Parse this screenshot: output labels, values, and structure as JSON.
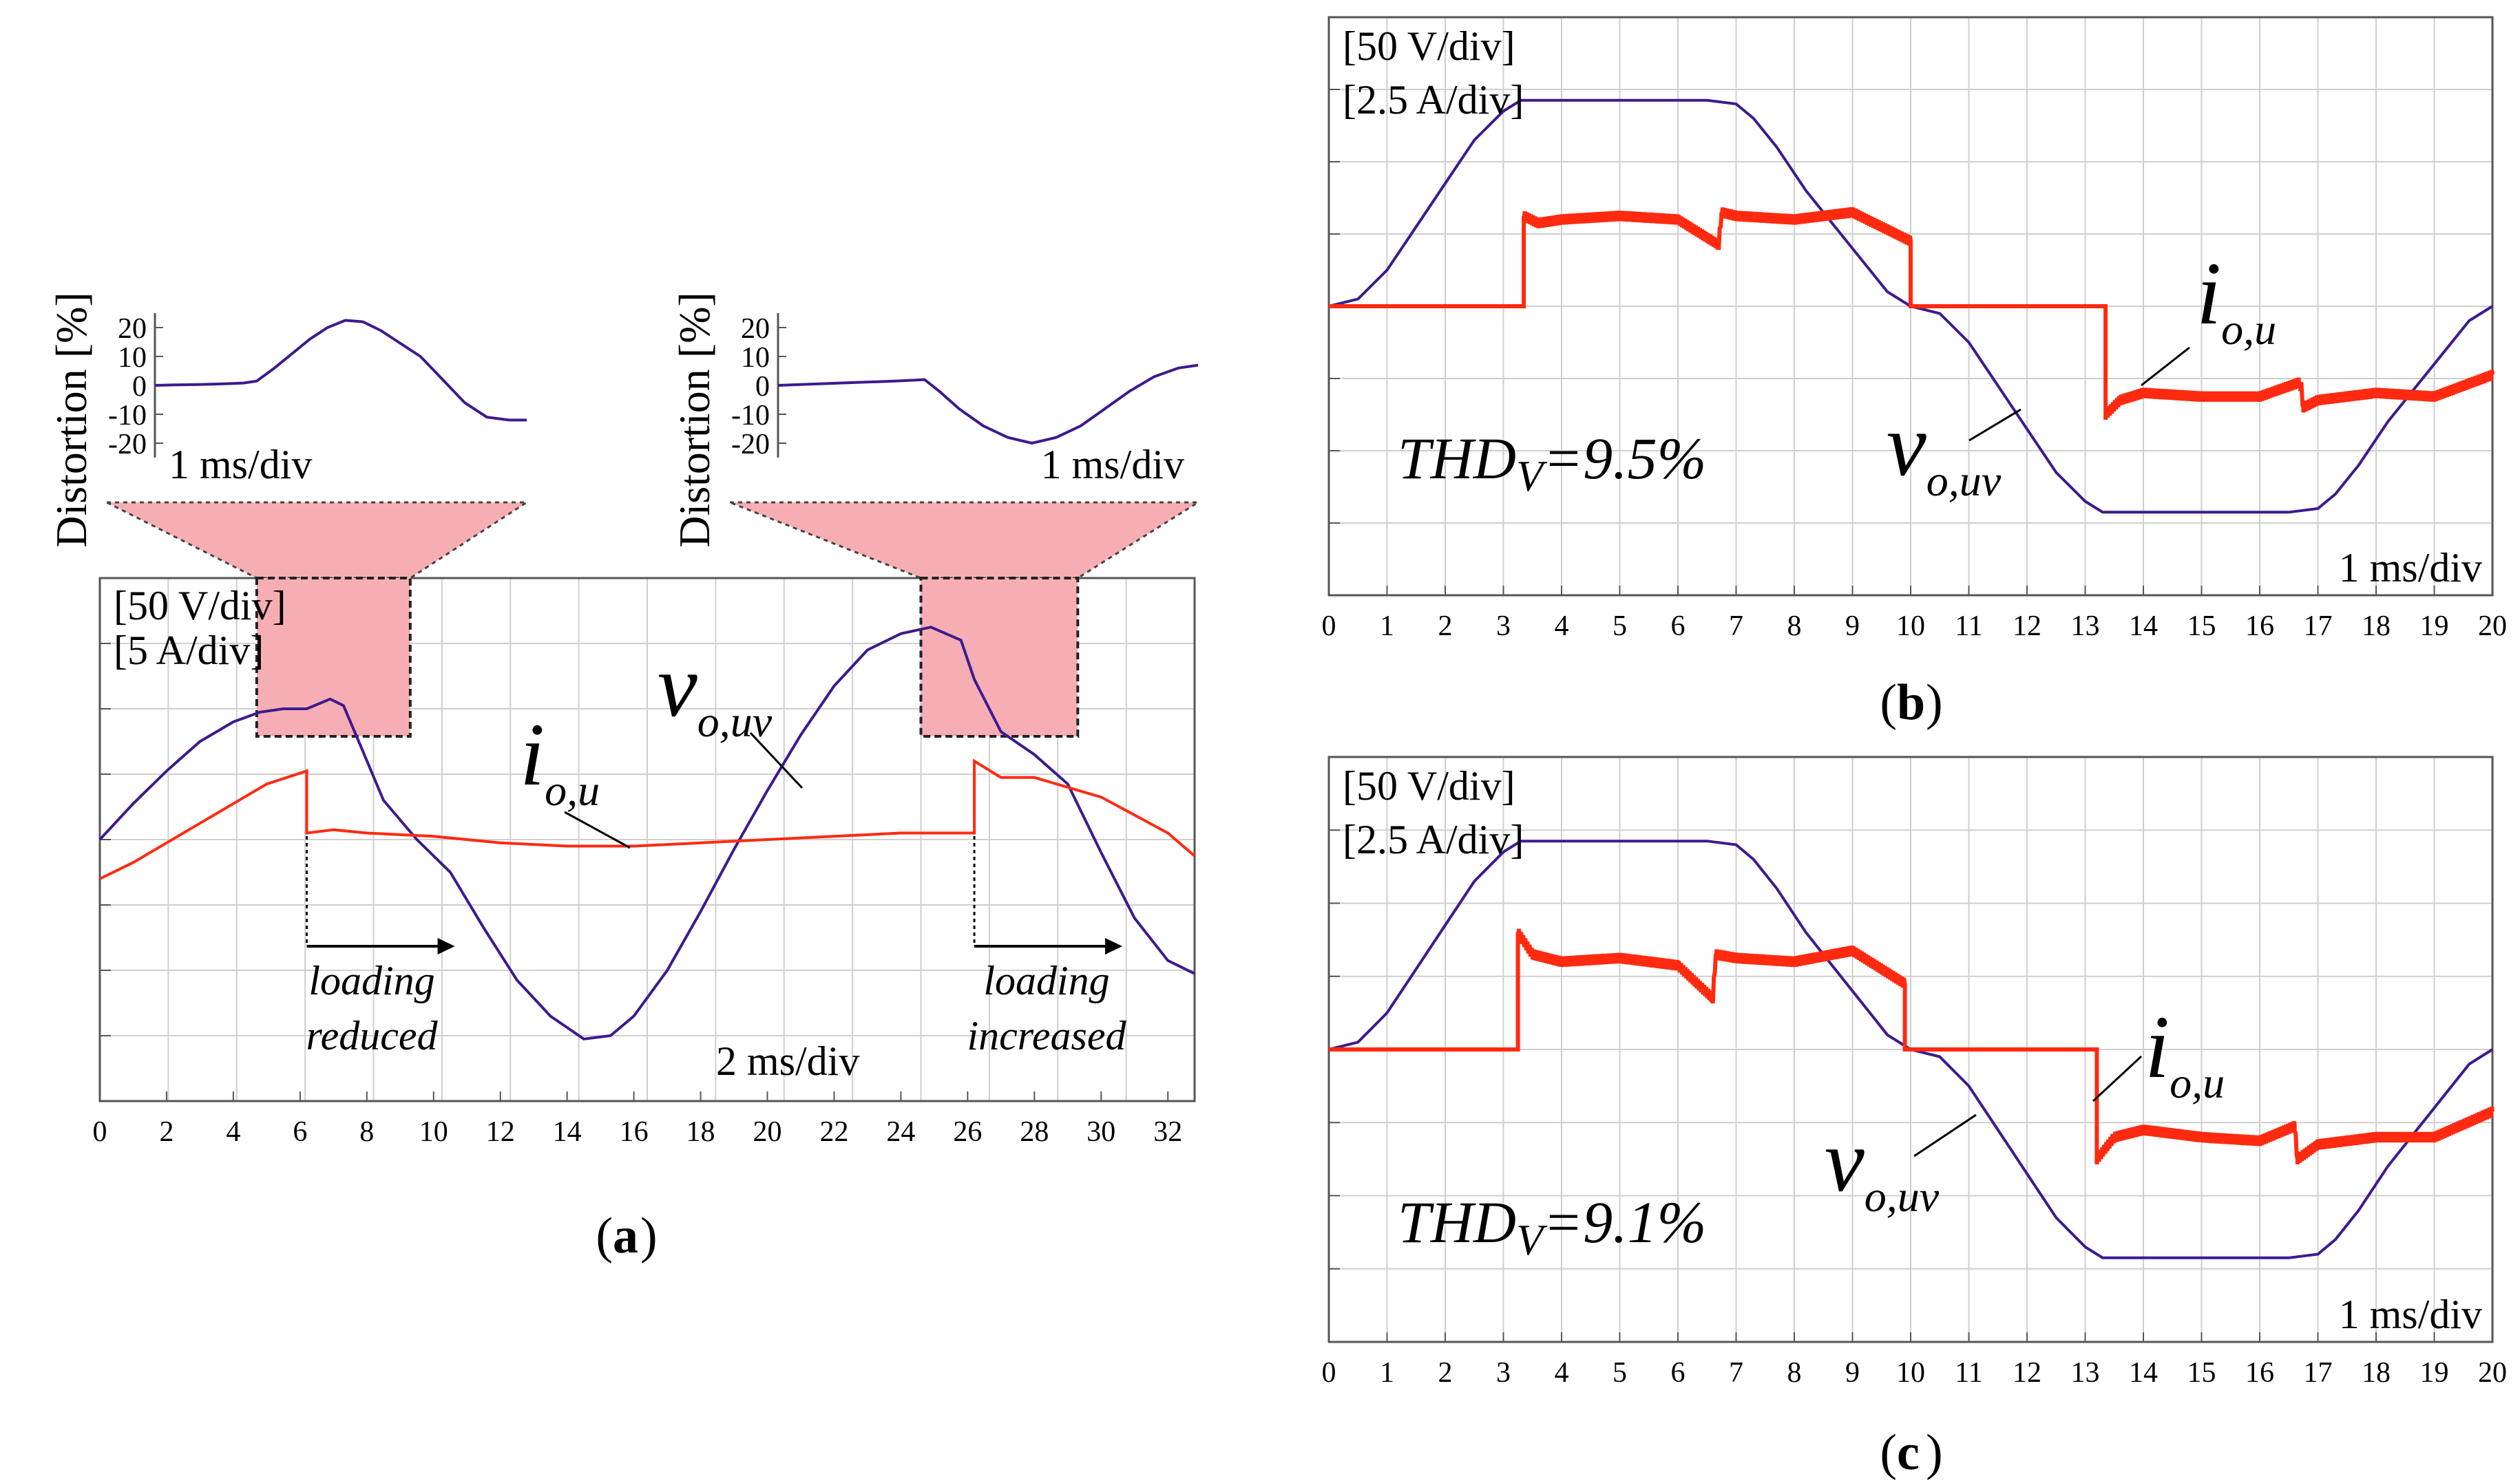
{
  "colors": {
    "voltage": "#3d1a8f",
    "current": "#ff2a10",
    "grid": "#cfcfcf",
    "zoom_fill": "#f6aeb4"
  },
  "chart_data": [
    {
      "id": "a",
      "type": "line",
      "panel_label": "a",
      "xlim": [
        0,
        32.8
      ],
      "xticks": [
        0,
        2,
        4,
        6,
        8,
        10,
        12,
        14,
        16,
        18,
        20,
        22,
        24,
        26,
        28,
        30,
        32
      ],
      "ylim": [
        -4,
        4
      ],
      "scale_labels": [
        "[50 V/div]",
        "[5 A/div]"
      ],
      "time_div": "2 ms/div",
      "annotations": {
        "left": [
          "loading",
          "reduced"
        ],
        "right": [
          "loading",
          "increased"
        ]
      },
      "series": [
        {
          "name": "vo,uv",
          "symbol": "v",
          "subscript": "o,uv",
          "x": [
            0,
            1,
            2,
            3,
            4,
            4.8,
            5.5,
            6.2,
            6.9,
            7.3,
            7.8,
            8.5,
            9.5,
            10.5,
            11.5,
            12.5,
            13.5,
            14.5,
            15.3,
            16,
            17,
            18,
            19,
            20,
            21,
            22,
            23,
            24,
            24.9,
            25.8,
            26.2,
            27,
            28,
            29,
            30,
            31,
            32,
            32.8
          ],
          "y": [
            0,
            0.55,
            1.05,
            1.5,
            1.8,
            1.95,
            2.0,
            2.0,
            2.15,
            2.05,
            1.45,
            0.6,
            0,
            -0.5,
            -1.35,
            -2.15,
            -2.7,
            -3.05,
            -3.0,
            -2.7,
            -2.0,
            -1.1,
            -0.15,
            0.75,
            1.6,
            2.35,
            2.9,
            3.15,
            3.25,
            3.05,
            2.45,
            1.65,
            1.3,
            0.85,
            -0.2,
            -1.2,
            -1.85,
            -2.05
          ]
        },
        {
          "name": "io,u",
          "symbol": "i",
          "subscript": "o,u",
          "x": [
            0,
            1,
            2,
            3,
            4,
            5,
            6.2,
            6.2,
            7,
            8,
            10,
            12,
            14,
            16,
            18,
            20,
            22,
            24,
            26.2,
            26.2,
            27,
            28,
            30,
            32,
            32.8
          ],
          "y": [
            -0.6,
            -0.35,
            -0.05,
            0.25,
            0.55,
            0.85,
            1.05,
            0.1,
            0.15,
            0.1,
            0.05,
            -0.05,
            -0.1,
            -0.1,
            -0.05,
            0.0,
            0.05,
            0.1,
            0.1,
            1.2,
            0.95,
            0.95,
            0.65,
            0.1,
            -0.25
          ]
        }
      ],
      "insets": [
        {
          "id": "a1",
          "ylabel": "Distortion [%]",
          "yticks": [
            20,
            10,
            0,
            -10,
            -20
          ],
          "time_div": "1 ms/div",
          "x": [
            0,
            0.5,
            1,
            1.5,
            2,
            2.3,
            2.7,
            3.1,
            3.5,
            3.9,
            4.3,
            4.7,
            5.1,
            5.5,
            6,
            6.5,
            7,
            7.5,
            8,
            8.4
          ],
          "y": [
            0,
            0.2,
            0.3,
            0.5,
            0.8,
            1.5,
            6,
            11,
            16,
            20,
            22.5,
            22,
            19,
            15,
            10,
            2,
            -6,
            -11,
            -12,
            -12
          ]
        },
        {
          "id": "a2",
          "ylabel": "Distortion [%]",
          "yticks": [
            20,
            10,
            0,
            -10,
            -20
          ],
          "time_div": "1 ms/div",
          "x": [
            0,
            0.8,
            1.6,
            2.4,
            3.0,
            3.3,
            3.7,
            4.2,
            4.7,
            5.2,
            5.7,
            6.2,
            6.7,
            7.2,
            7.7,
            8.2,
            8.6
          ],
          "y": [
            0,
            0.5,
            1,
            1.5,
            2,
            -2,
            -8,
            -14,
            -18,
            -20,
            -18,
            -14,
            -8,
            -2,
            3,
            6,
            7
          ]
        }
      ]
    },
    {
      "id": "b",
      "type": "line",
      "panel_label": "b",
      "xlim": [
        0,
        20
      ],
      "xticks": [
        0,
        1,
        2,
        3,
        4,
        5,
        6,
        7,
        8,
        9,
        10,
        11,
        12,
        13,
        14,
        15,
        16,
        17,
        18,
        19,
        20
      ],
      "ylim": [
        -4,
        4
      ],
      "scale_labels": [
        "[50 V/div]",
        "[2.5 A/div]"
      ],
      "time_div": "1 ms/div",
      "thd": {
        "prefix": "THD",
        "sub": "V",
        "value": "=9.5%"
      },
      "series": [
        {
          "name": "vo,uv",
          "symbol": "v",
          "subscript": "o,uv",
          "x": [
            0,
            0.5,
            1,
            1.5,
            2,
            2.5,
            3,
            3.3,
            3.6,
            4,
            5,
            6,
            6.5,
            7,
            7.3,
            7.7,
            8.2,
            8.7,
            9.2,
            9.6,
            10,
            10.5,
            11,
            11.5,
            12,
            12.5,
            13,
            13.3,
            13.6,
            14,
            15,
            16,
            16.5,
            17,
            17.3,
            17.7,
            18.2,
            18.7,
            19.2,
            19.6,
            20
          ],
          "y": [
            0,
            0.1,
            0.5,
            1.1,
            1.7,
            2.3,
            2.7,
            2.85,
            2.85,
            2.85,
            2.85,
            2.85,
            2.85,
            2.8,
            2.6,
            2.2,
            1.6,
            1.1,
            0.6,
            0.2,
            0,
            -0.1,
            -0.5,
            -1.1,
            -1.7,
            -2.3,
            -2.7,
            -2.85,
            -2.85,
            -2.85,
            -2.85,
            -2.85,
            -2.85,
            -2.8,
            -2.6,
            -2.2,
            -1.6,
            -1.1,
            -0.6,
            -0.2,
            0
          ]
        },
        {
          "name": "io,u",
          "symbol": "i",
          "subscript": "o,u",
          "x": [
            0,
            3.35,
            3.35,
            3.6,
            4,
            5,
            6,
            6.7,
            6.75,
            7,
            8,
            9,
            10,
            10,
            13.35,
            13.35,
            13.6,
            14,
            15,
            16,
            16.7,
            16.75,
            17,
            18,
            19,
            20
          ],
          "y": [
            0,
            0,
            1.25,
            1.15,
            1.2,
            1.25,
            1.2,
            0.85,
            1.3,
            1.25,
            1.2,
            1.3,
            0.9,
            0,
            0,
            -1.5,
            -1.3,
            -1.2,
            -1.25,
            -1.25,
            -1.05,
            -1.4,
            -1.3,
            -1.2,
            -1.25,
            -0.95
          ]
        }
      ]
    },
    {
      "id": "c",
      "type": "line",
      "panel_label": "c",
      "xlim": [
        0,
        20
      ],
      "xticks": [
        0,
        1,
        2,
        3,
        4,
        5,
        6,
        7,
        8,
        9,
        10,
        11,
        12,
        13,
        14,
        15,
        16,
        17,
        18,
        19,
        20
      ],
      "ylim": [
        -4,
        4
      ],
      "scale_labels": [
        "[50 V/div]",
        "[2.5 A/div]"
      ],
      "time_div": "1 ms/div",
      "thd": {
        "prefix": "THD",
        "sub": "V",
        "value": "=9.1%"
      },
      "series": [
        {
          "name": "vo,uv",
          "symbol": "v",
          "subscript": "o,uv",
          "x": [
            0,
            0.5,
            1,
            1.5,
            2,
            2.5,
            3,
            3.3,
            3.6,
            4,
            5,
            6,
            6.5,
            7,
            7.3,
            7.7,
            8.2,
            8.7,
            9.2,
            9.6,
            10,
            10.5,
            11,
            11.5,
            12,
            12.5,
            13,
            13.3,
            13.6,
            14,
            15,
            16,
            16.5,
            17,
            17.3,
            17.7,
            18.2,
            18.7,
            19.2,
            19.6,
            20
          ],
          "y": [
            0,
            0.1,
            0.5,
            1.1,
            1.7,
            2.3,
            2.7,
            2.85,
            2.85,
            2.85,
            2.85,
            2.85,
            2.85,
            2.8,
            2.6,
            2.2,
            1.6,
            1.1,
            0.6,
            0.2,
            0,
            -0.1,
            -0.5,
            -1.1,
            -1.7,
            -2.3,
            -2.7,
            -2.85,
            -2.85,
            -2.85,
            -2.85,
            -2.85,
            -2.85,
            -2.8,
            -2.6,
            -2.2,
            -1.6,
            -1.1,
            -0.6,
            -0.2,
            0
          ]
        },
        {
          "name": "io,u",
          "symbol": "i",
          "subscript": "o,u",
          "x": [
            0,
            3.25,
            3.25,
            3.5,
            4,
            5,
            6,
            6.6,
            6.65,
            7,
            8,
            9,
            9.9,
            9.9,
            13.2,
            13.2,
            13.5,
            14,
            15,
            16,
            16.6,
            16.65,
            17,
            18,
            19,
            20
          ],
          "y": [
            0,
            0,
            1.6,
            1.3,
            1.2,
            1.25,
            1.15,
            0.7,
            1.3,
            1.25,
            1.2,
            1.35,
            0.9,
            0,
            0,
            -1.5,
            -1.2,
            -1.1,
            -1.2,
            -1.25,
            -1.05,
            -1.5,
            -1.3,
            -1.2,
            -1.2,
            -0.85
          ]
        }
      ]
    }
  ]
}
